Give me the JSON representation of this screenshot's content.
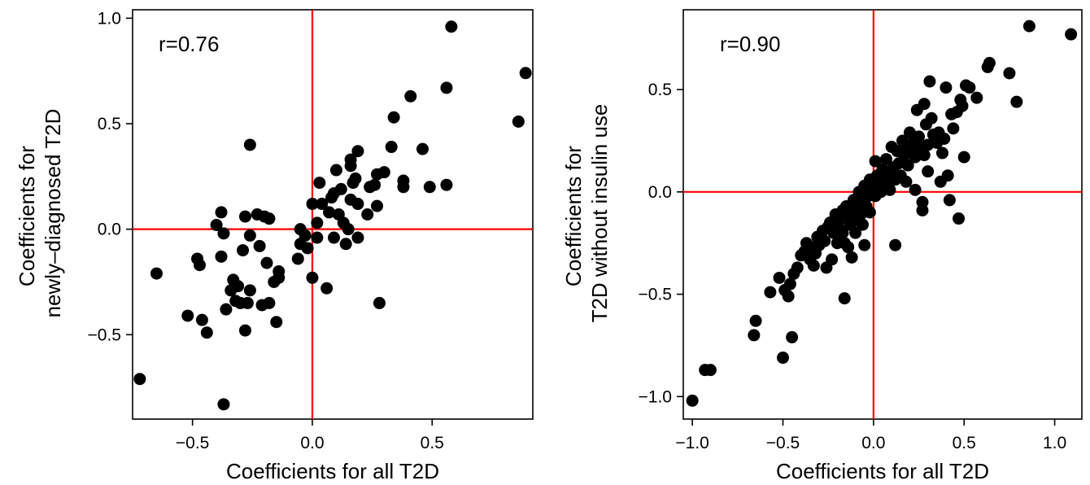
{
  "chart_data": [
    {
      "type": "scatter",
      "xlabel": "Coefficients for all T2D",
      "ylabel_lines": [
        "Coefficients for",
        "newly–diagnosed T2D"
      ],
      "annotation": "r=0.76",
      "xlim": [
        -0.75,
        0.92
      ],
      "ylim": [
        -0.9,
        1.04
      ],
      "xticks": [
        -0.5,
        0.0,
        0.5
      ],
      "xtick_labels": [
        "−0.5",
        "0.0",
        "0.5"
      ],
      "yticks": [
        -0.5,
        0.0,
        0.5,
        1.0
      ],
      "ytick_labels": [
        "−0.5",
        "0.0",
        "0.5",
        "1.0"
      ],
      "reference_lines": {
        "x": 0,
        "y": 0,
        "color": "#ff0000"
      },
      "point_color": "#000000",
      "grid": false,
      "points": [
        [
          -0.72,
          -0.71
        ],
        [
          -0.65,
          -0.21
        ],
        [
          -0.52,
          -0.41
        ],
        [
          -0.48,
          -0.14
        ],
        [
          -0.47,
          -0.17
        ],
        [
          -0.46,
          -0.43
        ],
        [
          -0.44,
          -0.49
        ],
        [
          -0.4,
          0.02
        ],
        [
          -0.38,
          0.08
        ],
        [
          -0.38,
          -0.13
        ],
        [
          -0.37,
          -0.02
        ],
        [
          -0.37,
          -0.83
        ],
        [
          -0.36,
          -0.38
        ],
        [
          -0.34,
          -0.29
        ],
        [
          -0.33,
          -0.24
        ],
        [
          -0.32,
          -0.34
        ],
        [
          -0.31,
          -0.27
        ],
        [
          -0.3,
          -0.35
        ],
        [
          -0.29,
          -0.1
        ],
        [
          -0.28,
          -0.48
        ],
        [
          -0.28,
          0.06
        ],
        [
          -0.27,
          -0.35
        ],
        [
          -0.26,
          0.4
        ],
        [
          -0.26,
          -0.03
        ],
        [
          -0.26,
          -0.29
        ],
        [
          -0.23,
          0.07
        ],
        [
          -0.22,
          -0.08
        ],
        [
          -0.21,
          -0.36
        ],
        [
          -0.2,
          0.06
        ],
        [
          -0.18,
          0.05
        ],
        [
          -0.19,
          -0.16
        ],
        [
          -0.18,
          -0.35
        ],
        [
          -0.16,
          -0.25
        ],
        [
          -0.15,
          -0.44
        ],
        [
          -0.14,
          -0.2
        ],
        [
          -0.14,
          -0.23
        ],
        [
          -0.06,
          -0.14
        ],
        [
          -0.05,
          0.0
        ],
        [
          -0.05,
          -0.07
        ],
        [
          -0.03,
          -0.03
        ],
        [
          -0.02,
          -0.09
        ],
        [
          0.0,
          0.12
        ],
        [
          0.0,
          -0.23
        ],
        [
          0.02,
          -0.04
        ],
        [
          0.02,
          0.03
        ],
        [
          0.03,
          0.22
        ],
        [
          0.04,
          0.12
        ],
        [
          0.06,
          -0.28
        ],
        [
          0.07,
          0.08
        ],
        [
          0.08,
          0.15
        ],
        [
          0.09,
          0.17
        ],
        [
          0.09,
          -0.04
        ],
        [
          0.1,
          0.28
        ],
        [
          0.11,
          0.07
        ],
        [
          0.12,
          0.19
        ],
        [
          0.13,
          0.03
        ],
        [
          0.14,
          -0.07
        ],
        [
          0.15,
          0.0
        ],
        [
          0.16,
          0.3
        ],
        [
          0.16,
          0.33
        ],
        [
          0.16,
          0.14
        ],
        [
          0.17,
          0.22
        ],
        [
          0.18,
          0.24
        ],
        [
          0.19,
          0.12
        ],
        [
          0.19,
          0.37
        ],
        [
          0.19,
          -0.04
        ],
        [
          0.23,
          0.07
        ],
        [
          0.24,
          0.2
        ],
        [
          0.26,
          0.21
        ],
        [
          0.27,
          0.26
        ],
        [
          0.27,
          0.11
        ],
        [
          0.28,
          -0.35
        ],
        [
          0.3,
          0.27
        ],
        [
          0.33,
          0.39
        ],
        [
          0.34,
          0.53
        ],
        [
          0.38,
          0.2
        ],
        [
          0.38,
          0.23
        ],
        [
          0.41,
          0.63
        ],
        [
          0.46,
          0.38
        ],
        [
          0.49,
          0.2
        ],
        [
          0.56,
          0.21
        ],
        [
          0.56,
          0.67
        ],
        [
          0.58,
          0.96
        ],
        [
          0.86,
          0.51
        ],
        [
          0.89,
          0.74
        ]
      ]
    },
    {
      "type": "scatter",
      "xlabel": "Coefficients for all T2D",
      "ylabel_lines": [
        "Coefficients for",
        "T2D without insulin use"
      ],
      "annotation": "r=0.90",
      "xlim": [
        -1.05,
        1.15
      ],
      "ylim": [
        -1.11,
        0.89
      ],
      "xticks": [
        -1.0,
        -0.5,
        0.0,
        0.5,
        1.0
      ],
      "xtick_labels": [
        "−1.0",
        "−0.5",
        "0.0",
        "0.5",
        "1.0"
      ],
      "yticks": [
        -1.0,
        -0.5,
        0.0,
        0.5
      ],
      "ytick_labels": [
        "−1.0",
        "−0.5",
        "0.0",
        "0.5"
      ],
      "reference_lines": {
        "x": 0,
        "y": 0,
        "color": "#ff0000"
      },
      "point_color": "#000000",
      "grid": false,
      "points": [
        [
          -1.0,
          -1.02
        ],
        [
          -0.93,
          -0.87
        ],
        [
          -0.9,
          -0.87
        ],
        [
          -0.65,
          -0.63
        ],
        [
          -0.66,
          -0.7
        ],
        [
          -0.57,
          -0.49
        ],
        [
          -0.52,
          -0.42
        ],
        [
          -0.5,
          -0.81
        ],
        [
          -0.49,
          -0.48
        ],
        [
          -0.47,
          -0.51
        ],
        [
          -0.46,
          -0.45
        ],
        [
          -0.45,
          -0.71
        ],
        [
          -0.44,
          -0.4
        ],
        [
          -0.42,
          -0.37
        ],
        [
          -0.4,
          -0.31
        ],
        [
          -0.38,
          -0.29
        ],
        [
          -0.37,
          -0.25
        ],
        [
          -0.35,
          -0.33
        ],
        [
          -0.34,
          -0.27
        ],
        [
          -0.33,
          -0.36
        ],
        [
          -0.32,
          -0.3
        ],
        [
          -0.31,
          -0.22
        ],
        [
          -0.3,
          -0.26
        ],
        [
          -0.28,
          -0.19
        ],
        [
          -0.27,
          -0.24
        ],
        [
          -0.26,
          -0.37
        ],
        [
          -0.25,
          -0.17
        ],
        [
          -0.24,
          -0.15
        ],
        [
          -0.23,
          -0.33
        ],
        [
          -0.22,
          -0.2
        ],
        [
          -0.21,
          -0.11
        ],
        [
          -0.2,
          -0.25
        ],
        [
          -0.2,
          -0.14
        ],
        [
          -0.19,
          -0.18
        ],
        [
          -0.18,
          -0.13
        ],
        [
          -0.17,
          -0.09
        ],
        [
          -0.17,
          -0.2
        ],
        [
          -0.16,
          -0.25
        ],
        [
          -0.16,
          -0.52
        ],
        [
          -0.15,
          -0.07
        ],
        [
          -0.14,
          -0.12
        ],
        [
          -0.14,
          -0.27
        ],
        [
          -0.13,
          -0.16
        ],
        [
          -0.12,
          -0.1
        ],
        [
          -0.12,
          -0.32
        ],
        [
          -0.11,
          -0.04
        ],
        [
          -0.1,
          -0.14
        ],
        [
          -0.1,
          -0.2
        ],
        [
          -0.09,
          -0.08
        ],
        [
          -0.08,
          0.0
        ],
        [
          -0.07,
          -0.11
        ],
        [
          -0.07,
          -0.05
        ],
        [
          -0.06,
          -0.16
        ],
        [
          -0.05,
          0.03
        ],
        [
          -0.05,
          -0.26
        ],
        [
          -0.04,
          -0.07
        ],
        [
          -0.03,
          -0.02
        ],
        [
          -0.02,
          0.06
        ],
        [
          -0.02,
          -0.1
        ],
        [
          -0.01,
          0.01
        ],
        [
          0.0,
          0.04
        ],
        [
          0.01,
          0.15
        ],
        [
          0.01,
          -0.02
        ],
        [
          0.02,
          0.08
        ],
        [
          0.03,
          0.02
        ],
        [
          0.04,
          0.0
        ],
        [
          0.05,
          0.11
        ],
        [
          0.06,
          0.06
        ],
        [
          0.07,
          0.16
        ],
        [
          0.08,
          0.03
        ],
        [
          0.09,
          0.01
        ],
        [
          0.1,
          0.09
        ],
        [
          0.1,
          0.22
        ],
        [
          0.11,
          0.12
        ],
        [
          0.12,
          0.06
        ],
        [
          0.12,
          -0.26
        ],
        [
          0.13,
          0.2
        ],
        [
          0.14,
          0.14
        ],
        [
          0.15,
          0.08
        ],
        [
          0.16,
          0.25
        ],
        [
          0.17,
          0.18
        ],
        [
          0.18,
          0.22
        ],
        [
          0.18,
          0.05
        ],
        [
          0.19,
          0.13
        ],
        [
          0.2,
          0.29
        ],
        [
          0.21,
          0.2
        ],
        [
          0.22,
          0.24
        ],
        [
          0.23,
          0.01
        ],
        [
          0.23,
          0.17
        ],
        [
          0.24,
          0.4
        ],
        [
          0.25,
          0.27
        ],
        [
          0.26,
          0.22
        ],
        [
          0.27,
          -0.05
        ],
        [
          0.27,
          -0.09
        ],
        [
          0.28,
          0.18
        ],
        [
          0.28,
          0.43
        ],
        [
          0.29,
          0.33
        ],
        [
          0.3,
          0.23
        ],
        [
          0.3,
          0.1
        ],
        [
          0.31,
          0.54
        ],
        [
          0.32,
          0.36
        ],
        [
          0.33,
          0.28
        ],
        [
          0.35,
          0.24
        ],
        [
          0.36,
          0.29
        ],
        [
          0.37,
          0.05
        ],
        [
          0.38,
          0.19
        ],
        [
          0.39,
          0.26
        ],
        [
          0.4,
          0.51
        ],
        [
          0.41,
          0.08
        ],
        [
          0.42,
          -0.04
        ],
        [
          0.43,
          0.38
        ],
        [
          0.44,
          0.31
        ],
        [
          0.46,
          0.39
        ],
        [
          0.47,
          -0.13
        ],
        [
          0.48,
          0.45
        ],
        [
          0.49,
          0.42
        ],
        [
          0.5,
          0.17
        ],
        [
          0.51,
          0.52
        ],
        [
          0.53,
          0.51
        ],
        [
          0.57,
          0.46
        ],
        [
          0.63,
          0.61
        ],
        [
          0.64,
          0.63
        ],
        [
          0.75,
          0.58
        ],
        [
          0.79,
          0.44
        ],
        [
          0.86,
          0.81
        ],
        [
          1.09,
          0.77
        ]
      ]
    }
  ]
}
